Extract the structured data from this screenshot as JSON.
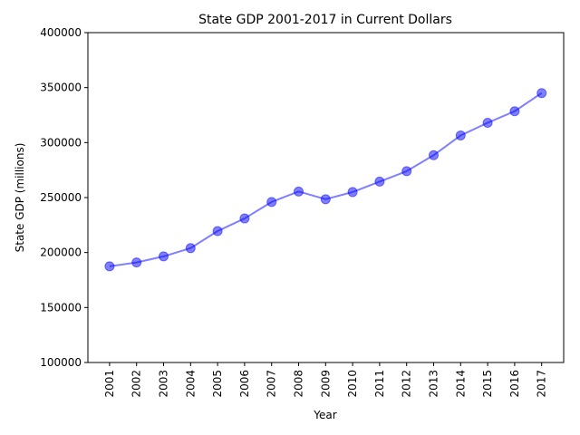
{
  "chart_data": {
    "type": "line",
    "title": "State GDP 2001-2017 in Current Dollars",
    "xlabel": "Year",
    "ylabel": "State GDP (millions)",
    "ylim": [
      100000,
      400000
    ],
    "yticks": [
      "100000",
      "150000",
      "200000",
      "250000",
      "300000",
      "350000",
      "400000"
    ],
    "categories": [
      "2001",
      "2002",
      "2003",
      "2004",
      "2005",
      "2006",
      "2007",
      "2008",
      "2009",
      "2010",
      "2011",
      "2012",
      "2013",
      "2014",
      "2015",
      "2016",
      "2017"
    ],
    "series": [
      {
        "values": [
          187500,
          191000,
          196500,
          204000,
          219500,
          231000,
          246000,
          255500,
          248500,
          255000,
          264500,
          274000,
          288500,
          306500,
          318000,
          328500,
          345000
        ],
        "color": "#0000ff"
      }
    ],
    "grid": false,
    "marker": "circle"
  }
}
